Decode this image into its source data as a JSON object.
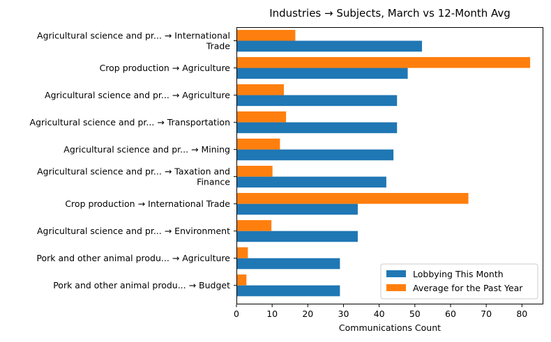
{
  "chart_data": {
    "type": "bar",
    "orientation": "horizontal",
    "title": "Industries → Subjects, March vs 12-Month Avg",
    "xlabel": "Communications Count",
    "ylabel": "",
    "xlim": [
      0,
      86
    ],
    "xticks": [
      0,
      10,
      20,
      30,
      40,
      50,
      60,
      70,
      80
    ],
    "grid": false,
    "legend_position": "lower-right",
    "categories": [
      [
        "Agricultural science and pr... → International",
        "Trade"
      ],
      [
        "Crop production → Agriculture"
      ],
      [
        "Agricultural science and pr... → Agriculture"
      ],
      [
        "Agricultural science and pr... → Transportation"
      ],
      [
        "Agricultural science and pr... → Mining"
      ],
      [
        "Agricultural science and pr... → Taxation and",
        "Finance"
      ],
      [
        "Crop production → International Trade"
      ],
      [
        "Agricultural science and pr... → Environment"
      ],
      [
        "Pork and other animal produ... → Agriculture"
      ],
      [
        "Pork and other animal produ... → Budget"
      ]
    ],
    "series": [
      {
        "name": "Lobbying This Month",
        "color": "#1f77b4",
        "values": [
          52,
          48,
          45,
          45,
          44,
          42,
          34,
          34,
          29,
          29
        ]
      },
      {
        "name": "Average for the Past Year",
        "color": "#ff7f0e",
        "values": [
          16.5,
          82.3,
          13.3,
          13.9,
          12.2,
          10.1,
          65,
          9.8,
          3.2,
          2.8
        ]
      }
    ]
  }
}
